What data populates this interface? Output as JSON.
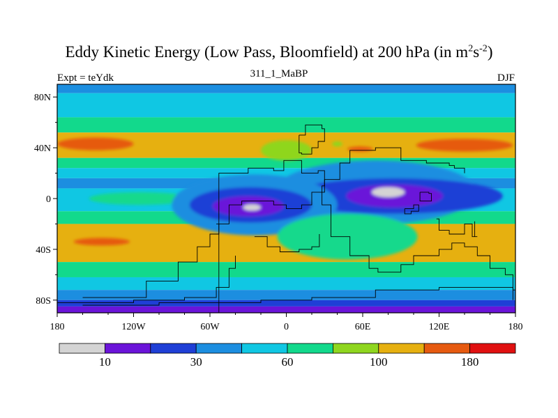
{
  "chart_data": {
    "type": "heatmap",
    "title": "Eddy Kinetic Energy (Low Pass, Bloomfield) at 200 hPa (in m",
    "title_units_exponent_1": "2",
    "title_units_middle": "s",
    "title_units_exponent_2": "-2",
    "title_close": ")",
    "subtitle": "311_1_MaBP",
    "left_label": "Expt = teYdk",
    "right_label": "DJF",
    "projection": "cylindrical equidistant, longitude 180W-180E, latitude 90S-90N",
    "x_ticks": [
      "180",
      "120W",
      "60W",
      "0",
      "60E",
      "120E",
      "180"
    ],
    "y_ticks": [
      "80N",
      "40N",
      "0",
      "40S",
      "80S"
    ],
    "colorbar_levels": [
      10,
      20,
      30,
      45,
      60,
      80,
      100,
      140,
      180
    ],
    "colorbar_labels": [
      "10",
      "30",
      "60",
      "100",
      "180"
    ],
    "colorbar_colors": [
      "#d4d4d4",
      "#6b14d9",
      "#1f3fd6",
      "#1c8ee0",
      "#10c7e3",
      "#12d98c",
      "#8fd61f",
      "#e6b010",
      "#e65a10",
      "#e01010"
    ],
    "zonal_bands": [
      {
        "lat_from": 90,
        "lat_to": 83,
        "level": 3
      },
      {
        "lat_from": 83,
        "lat_to": 64,
        "level": 4
      },
      {
        "lat_from": 64,
        "lat_to": 52,
        "level": 5
      },
      {
        "lat_from": 52,
        "lat_to": 32,
        "level": 7
      },
      {
        "lat_from": 32,
        "lat_to": 24,
        "level": 5
      },
      {
        "lat_from": 24,
        "lat_to": 16,
        "level": 4
      },
      {
        "lat_from": 16,
        "lat_to": 8,
        "level": 3
      },
      {
        "lat_from": 8,
        "lat_to": -10,
        "level": 4
      },
      {
        "lat_from": -10,
        "lat_to": -20,
        "level": 5
      },
      {
        "lat_from": -20,
        "lat_to": -50,
        "level": 7
      },
      {
        "lat_from": -50,
        "lat_to": -62,
        "level": 5
      },
      {
        "lat_from": -62,
        "lat_to": -72,
        "level": 4
      },
      {
        "lat_from": -72,
        "lat_to": -80,
        "level": 3
      },
      {
        "lat_from": -80,
        "lat_to": -85,
        "level": 2
      },
      {
        "lat_from": -85,
        "lat_to": -90,
        "level": 1
      }
    ],
    "anomalies": [
      {
        "lon": -150,
        "lat": 43,
        "rlon": 30,
        "rlat": 5,
        "level": 8
      },
      {
        "lon": 140,
        "lat": 42,
        "rlon": 38,
        "rlat": 5,
        "level": 8
      },
      {
        "lon": 58,
        "lat": 39,
        "rlon": 10,
        "rlat": 2,
        "level": 8
      },
      {
        "lon": -145,
        "lat": -34,
        "rlon": 22,
        "rlat": 3,
        "level": 8
      },
      {
        "lon": -115,
        "lat": 0,
        "rlon": 40,
        "rlat": 5,
        "level": 5
      },
      {
        "lon": 60,
        "lat": -5,
        "rlon": 60,
        "rlat": 9,
        "level": 5
      },
      {
        "lon": 70,
        "lat": 5,
        "rlon": 80,
        "rlat": 25,
        "level": 3
      },
      {
        "lon": 85,
        "lat": 2,
        "rlon": 85,
        "rlat": 14,
        "level": 2
      },
      {
        "lon": 85,
        "lat": 2,
        "rlon": 38,
        "rlat": 9,
        "level": 1
      },
      {
        "lon": 80,
        "lat": 5,
        "rlon": 13,
        "rlat": 4,
        "level": 0
      },
      {
        "lon": -25,
        "lat": -5,
        "rlon": 65,
        "rlat": 24,
        "level": 3
      },
      {
        "lon": -28,
        "lat": -5,
        "rlon": 48,
        "rlat": 14,
        "level": 2
      },
      {
        "lon": -30,
        "lat": -6,
        "rlon": 28,
        "rlat": 8,
        "level": 1
      },
      {
        "lon": -27,
        "lat": -7,
        "rlon": 7,
        "rlat": 2.5,
        "level": 0
      },
      {
        "lon": 40,
        "lat": 43,
        "rlon": 4,
        "rlat": 2,
        "level": 6
      },
      {
        "lon": 0,
        "lat": 38,
        "rlon": 20,
        "rlat": 8,
        "level": 6
      },
      {
        "lon": 48,
        "lat": -30,
        "rlon": 55,
        "rlat": 18,
        "level": 5
      }
    ],
    "outlines": [
      [
        [
          -53,
          -90
        ],
        [
          -53,
          20
        ],
        [
          -40,
          20
        ],
        [
          -30,
          24
        ],
        [
          -10,
          22
        ],
        [
          -2,
          30
        ],
        [
          12,
          20
        ],
        [
          25,
          22
        ],
        [
          30,
          10
        ],
        [
          28,
          -5
        ],
        [
          35,
          -30
        ],
        [
          50,
          -45
        ],
        [
          65,
          -55
        ],
        [
          72,
          -58
        ],
        [
          90,
          -52
        ],
        [
          100,
          -45
        ],
        [
          120,
          -40
        ],
        [
          130,
          -35
        ],
        [
          140,
          -38
        ],
        [
          150,
          -45
        ],
        [
          160,
          -55
        ],
        [
          172,
          -60
        ],
        [
          178,
          -72
        ],
        [
          180,
          -75
        ]
      ],
      [
        [
          -55,
          -20
        ],
        [
          -45,
          -5
        ],
        [
          -35,
          -2
        ],
        [
          -25,
          -2
        ],
        [
          -10,
          -5
        ],
        [
          0,
          -8
        ],
        [
          12,
          -5
        ],
        [
          20,
          5
        ],
        [
          30,
          15
        ],
        [
          42,
          28
        ],
        [
          50,
          38
        ],
        [
          58,
          38
        ],
        [
          70,
          40
        ],
        [
          90,
          30
        ],
        [
          110,
          28
        ],
        [
          128,
          26
        ],
        [
          132,
          24
        ],
        [
          140,
          20
        ]
      ],
      [
        [
          -25,
          -30
        ],
        [
          -15,
          -38
        ],
        [
          -5,
          -42
        ],
        [
          10,
          -40
        ],
        [
          20,
          -38
        ],
        [
          26,
          -28
        ]
      ],
      [
        [
          10,
          50
        ],
        [
          15,
          58
        ],
        [
          28,
          55
        ],
        [
          30,
          45
        ],
        [
          25,
          40
        ],
        [
          20,
          35
        ],
        [
          12,
          36
        ],
        [
          10,
          42
        ],
        [
          10,
          50
        ]
      ],
      [
        [
          -160,
          -78
        ],
        [
          -110,
          -65
        ],
        [
          -85,
          -50
        ],
        [
          -70,
          -38
        ],
        [
          -60,
          -28
        ],
        [
          -53,
          -20
        ]
      ],
      [
        [
          -180,
          -82
        ],
        [
          -120,
          -80
        ],
        [
          -80,
          -78
        ],
        [
          -55,
          -70
        ],
        [
          -45,
          -55
        ],
        [
          -40,
          -45
        ]
      ],
      [
        [
          -160,
          -84
        ],
        [
          -100,
          -82
        ],
        [
          -60,
          -82
        ],
        [
          -20,
          -80
        ],
        [
          20,
          -78
        ],
        [
          70,
          -72
        ],
        [
          120,
          -70
        ],
        [
          160,
          -70
        ],
        [
          178,
          -80
        ]
      ],
      [
        [
          118,
          -16
        ],
        [
          120,
          -25
        ],
        [
          128,
          -28
        ],
        [
          140,
          -20
        ],
        [
          146,
          -30
        ],
        [
          150,
          -30
        ],
        [
          148,
          -18
        ]
      ],
      [
        [
          93,
          -8
        ],
        [
          100,
          -5
        ],
        [
          104,
          -10
        ],
        [
          98,
          -12
        ],
        [
          93,
          -8
        ]
      ],
      [
        [
          105,
          5
        ],
        [
          112,
          4
        ],
        [
          114,
          -2
        ],
        [
          108,
          -2
        ],
        [
          105,
          5
        ]
      ]
    ]
  }
}
